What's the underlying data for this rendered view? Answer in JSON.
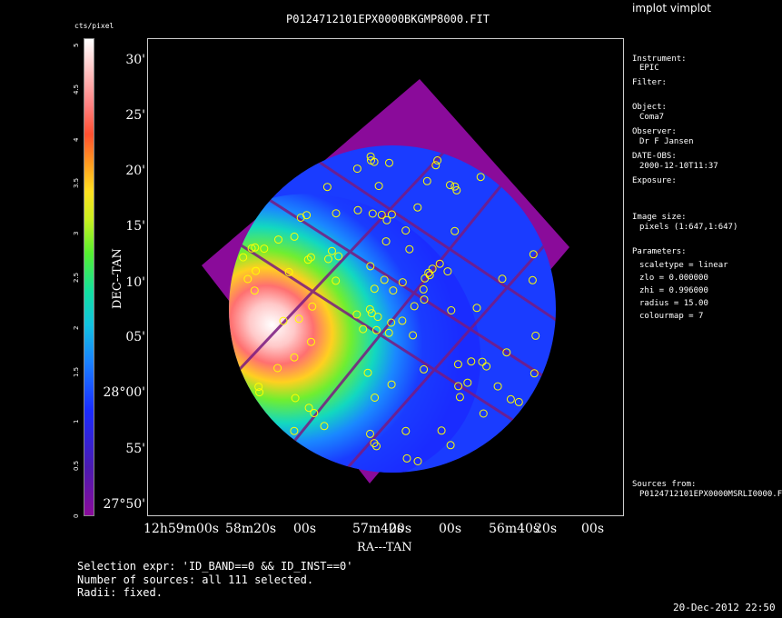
{
  "app_title": "implot vimplot",
  "image_title": "P0124712101EPX0000BKGMP8000.FIT",
  "colorbar": {
    "unit_label": "cts/pixel",
    "ticks": [
      "5",
      "4.5",
      "4",
      "3.5",
      "3",
      "2.5",
      "2",
      "1.5",
      "1",
      "0.5",
      "0"
    ]
  },
  "axes": {
    "y_label": "DEC--TAN",
    "x_label": "RA---TAN",
    "y_ticks": [
      "30'",
      "25'",
      "20'",
      "15'",
      "10'",
      "05'",
      "28°00'",
      "55'",
      "27°50'"
    ],
    "x_ticks": [
      "12h59m00s",
      "58m20s",
      "00s",
      "57m40s",
      "20s",
      "00s",
      "56m40s",
      "20s",
      "00s"
    ]
  },
  "info": {
    "instrument_label": "Instrument:",
    "instrument": "EPIC",
    "filter_label": "Filter:",
    "object_label": "Object:",
    "object": "Coma7",
    "observer_label": "Observer:",
    "observer": "Dr F Jansen",
    "date_obs_label": "DATE-OBS:",
    "date_obs": "2000-12-10T11:37",
    "exposure_label": "Exposure:",
    "image_size_label": "Image size:",
    "image_size": "pixels (1:647,1:647)",
    "parameters_label": "Parameters:",
    "scaletype": "scaletype = linear",
    "zlo": "zlo = 0.000000",
    "zhi": "zhi = 0.996000",
    "radius": "radius = 15.00",
    "colourmap": "colourmap = 7",
    "sources_label": "Sources from:",
    "sources_file": "P0124712101EPX0000MSRLI0000.F"
  },
  "footer": {
    "selection": "Selection expr: 'ID_BAND==0 && ID_INST==0'",
    "count": "Number of sources: all 111 selected.",
    "radii": "Radii: fixed.",
    "timestamp": "20-Dec-2012 22:50"
  },
  "colors": {
    "background": "#000000",
    "exposure_purple": "#8a0b9a",
    "source_circle": "#ffff00"
  }
}
